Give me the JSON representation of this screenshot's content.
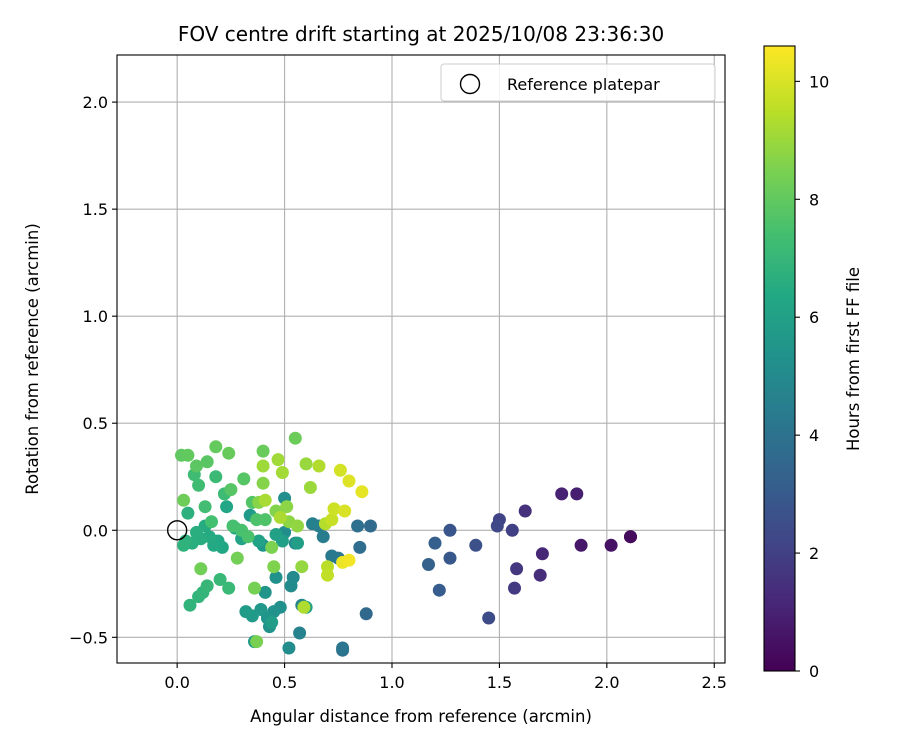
{
  "chart_data": {
    "type": "scatter",
    "title": "FOV centre drift starting at 2025/10/08 23:36:30",
    "xlabel": "Angular distance from reference (arcmin)",
    "ylabel": "Rotation from reference (arcmin)",
    "xlim": [
      -0.28,
      2.55
    ],
    "ylim": [
      -0.62,
      2.22
    ],
    "xticks": [
      "0.0",
      "0.5",
      "1.0",
      "1.5",
      "2.0",
      "2.5"
    ],
    "xtick_values": [
      0.0,
      0.5,
      1.0,
      1.5,
      2.0,
      2.5
    ],
    "yticks": [
      "−0.5",
      "0.0",
      "0.5",
      "1.0",
      "1.5",
      "2.0"
    ],
    "ytick_values": [
      -0.5,
      0.0,
      0.5,
      1.0,
      1.5,
      2.0
    ],
    "grid": true,
    "colorbar": {
      "label": "Hours from first FF file",
      "colormap": "viridis",
      "range": [
        0,
        10.6
      ],
      "ticks": [
        "0",
        "2",
        "4",
        "6",
        "8",
        "10"
      ],
      "tick_values": [
        0,
        2,
        4,
        6,
        8,
        10
      ]
    },
    "legend": {
      "entries": [
        "Reference platepar"
      ],
      "position": "upper right"
    },
    "reference_point": {
      "x": 0.0,
      "y": 0.0,
      "label": "Reference platepar"
    },
    "points": [
      {
        "x": 2.11,
        "y": -0.03,
        "h": 0.1
      },
      {
        "x": 2.11,
        "y": -0.03,
        "h": 0.3
      },
      {
        "x": 2.02,
        "y": -0.07,
        "h": 0.5
      },
      {
        "x": 1.88,
        "y": -0.07,
        "h": 0.7
      },
      {
        "x": 1.86,
        "y": 0.17,
        "h": 0.9
      },
      {
        "x": 1.79,
        "y": 0.17,
        "h": 1.0
      },
      {
        "x": 1.7,
        "y": -0.11,
        "h": 1.2
      },
      {
        "x": 1.69,
        "y": -0.21,
        "h": 1.4
      },
      {
        "x": 1.62,
        "y": 0.09,
        "h": 1.5
      },
      {
        "x": 1.58,
        "y": -0.18,
        "h": 1.7
      },
      {
        "x": 1.57,
        "y": -0.27,
        "h": 1.8
      },
      {
        "x": 1.56,
        "y": 0.0,
        "h": 2.0
      },
      {
        "x": 1.5,
        "y": 0.05,
        "h": 2.1
      },
      {
        "x": 1.49,
        "y": 0.02,
        "h": 2.3
      },
      {
        "x": 1.45,
        "y": -0.41,
        "h": 2.4
      },
      {
        "x": 1.39,
        "y": -0.07,
        "h": 2.6
      },
      {
        "x": 1.27,
        "y": 0.0,
        "h": 2.8
      },
      {
        "x": 1.27,
        "y": -0.13,
        "h": 2.9
      },
      {
        "x": 1.22,
        "y": -0.28,
        "h": 3.1
      },
      {
        "x": 1.2,
        "y": -0.06,
        "h": 3.2
      },
      {
        "x": 1.17,
        "y": -0.16,
        "h": 3.3
      },
      {
        "x": 0.88,
        "y": -0.39,
        "h": 3.6
      },
      {
        "x": 0.9,
        "y": 0.02,
        "h": 3.7
      },
      {
        "x": 0.85,
        "y": -0.08,
        "h": 3.8
      },
      {
        "x": 0.84,
        "y": 0.02,
        "h": 3.9
      },
      {
        "x": 0.77,
        "y": -0.56,
        "h": 4.0
      },
      {
        "x": 0.77,
        "y": -0.55,
        "h": 4.1
      },
      {
        "x": 0.75,
        "y": -0.13,
        "h": 4.2
      },
      {
        "x": 0.72,
        "y": -0.12,
        "h": 4.3
      },
      {
        "x": 0.68,
        "y": -0.03,
        "h": 4.4
      },
      {
        "x": 0.66,
        "y": 0.02,
        "h": 4.5
      },
      {
        "x": 0.63,
        "y": 0.03,
        "h": 4.6
      },
      {
        "x": 0.57,
        "y": -0.48,
        "h": 4.7
      },
      {
        "x": 0.58,
        "y": -0.35,
        "h": 4.8
      },
      {
        "x": 0.55,
        "y": -0.06,
        "h": 4.9
      },
      {
        "x": 0.54,
        "y": -0.22,
        "h": 5.0
      },
      {
        "x": 0.53,
        "y": -0.26,
        "h": 5.05
      },
      {
        "x": 0.52,
        "y": -0.55,
        "h": 5.1
      },
      {
        "x": 0.5,
        "y": -0.01,
        "h": 5.15
      },
      {
        "x": 0.5,
        "y": 0.15,
        "h": 5.2
      },
      {
        "x": 0.48,
        "y": -0.36,
        "h": 5.25
      },
      {
        "x": 0.46,
        "y": -0.22,
        "h": 5.3
      },
      {
        "x": 0.45,
        "y": -0.38,
        "h": 5.35
      },
      {
        "x": 0.43,
        "y": -0.45,
        "h": 5.4
      },
      {
        "x": 0.42,
        "y": -0.41,
        "h": 5.45
      },
      {
        "x": 0.41,
        "y": -0.29,
        "h": 5.5
      },
      {
        "x": 0.4,
        "y": -0.07,
        "h": 5.55
      },
      {
        "x": 0.39,
        "y": -0.37,
        "h": 5.6
      },
      {
        "x": 0.36,
        "y": -0.52,
        "h": 5.65
      },
      {
        "x": 0.35,
        "y": -0.4,
        "h": 5.7
      },
      {
        "x": 0.34,
        "y": 0.07,
        "h": 5.75
      },
      {
        "x": 0.32,
        "y": -0.38,
        "h": 5.8
      },
      {
        "x": 0.44,
        "y": -0.43,
        "h": 5.85
      },
      {
        "x": 0.56,
        "y": -0.06,
        "h": 5.9
      },
      {
        "x": 0.6,
        "y": -0.36,
        "h": 5.95
      },
      {
        "x": 0.49,
        "y": -0.05,
        "h": 6.0
      },
      {
        "x": 0.46,
        "y": -0.02,
        "h": 6.05
      },
      {
        "x": 0.38,
        "y": -0.05,
        "h": 6.1
      },
      {
        "x": 0.3,
        "y": -0.04,
        "h": 6.15
      },
      {
        "x": 0.27,
        "y": 0.01,
        "h": 6.2
      },
      {
        "x": 0.23,
        "y": 0.11,
        "h": 6.25
      },
      {
        "x": 0.21,
        "y": -0.08,
        "h": 6.3
      },
      {
        "x": 0.19,
        "y": -0.05,
        "h": 6.35
      },
      {
        "x": 0.17,
        "y": -0.07,
        "h": 6.4
      },
      {
        "x": 0.15,
        "y": -0.03,
        "h": 6.45
      },
      {
        "x": 0.13,
        "y": 0.02,
        "h": 6.5
      },
      {
        "x": 0.11,
        "y": -0.04,
        "h": 6.55
      },
      {
        "x": 0.09,
        "y": -0.01,
        "h": 6.6
      },
      {
        "x": 0.07,
        "y": -0.06,
        "h": 6.65
      },
      {
        "x": 0.05,
        "y": 0.08,
        "h": 6.7
      },
      {
        "x": 0.04,
        "y": -0.05,
        "h": 6.75
      },
      {
        "x": 0.03,
        "y": -0.07,
        "h": 6.8
      },
      {
        "x": 0.06,
        "y": -0.35,
        "h": 6.85
      },
      {
        "x": 0.1,
        "y": -0.31,
        "h": 6.9
      },
      {
        "x": 0.12,
        "y": -0.29,
        "h": 6.95
      },
      {
        "x": 0.14,
        "y": -0.26,
        "h": 7.0
      },
      {
        "x": 0.2,
        "y": -0.23,
        "h": 7.05
      },
      {
        "x": 0.24,
        "y": -0.27,
        "h": 7.1
      },
      {
        "x": 0.18,
        "y": 0.25,
        "h": 7.15
      },
      {
        "x": 0.22,
        "y": 0.17,
        "h": 7.2
      },
      {
        "x": 0.08,
        "y": 0.26,
        "h": 7.25
      },
      {
        "x": 0.1,
        "y": 0.21,
        "h": 7.3
      },
      {
        "x": 0.13,
        "y": 0.11,
        "h": 7.35
      },
      {
        "x": 0.16,
        "y": 0.04,
        "h": 7.4
      },
      {
        "x": 0.26,
        "y": 0.02,
        "h": 7.45
      },
      {
        "x": 0.3,
        "y": 0.0,
        "h": 7.5
      },
      {
        "x": 0.33,
        "y": -0.03,
        "h": 7.55
      },
      {
        "x": 0.37,
        "y": 0.05,
        "h": 7.6
      },
      {
        "x": 0.41,
        "y": 0.05,
        "h": 7.65
      },
      {
        "x": 0.35,
        "y": 0.13,
        "h": 7.7
      },
      {
        "x": 0.31,
        "y": 0.24,
        "h": 7.75
      },
      {
        "x": 0.25,
        "y": 0.19,
        "h": 7.8
      },
      {
        "x": 0.14,
        "y": 0.32,
        "h": 7.85
      },
      {
        "x": 0.09,
        "y": 0.3,
        "h": 7.9
      },
      {
        "x": 0.02,
        "y": 0.35,
        "h": 7.95
      },
      {
        "x": 0.05,
        "y": 0.35,
        "h": 8.0
      },
      {
        "x": 0.18,
        "y": 0.39,
        "h": 8.05
      },
      {
        "x": 0.24,
        "y": 0.36,
        "h": 8.1
      },
      {
        "x": 0.4,
        "y": 0.37,
        "h": 8.15
      },
      {
        "x": 0.55,
        "y": 0.43,
        "h": 8.2
      },
      {
        "x": 0.03,
        "y": 0.14,
        "h": 8.25
      },
      {
        "x": 0.11,
        "y": -0.18,
        "h": 8.3
      },
      {
        "x": 0.28,
        "y": -0.13,
        "h": 8.35
      },
      {
        "x": 0.36,
        "y": -0.27,
        "h": 8.4
      },
      {
        "x": 0.37,
        "y": -0.52,
        "h": 8.45
      },
      {
        "x": 0.44,
        "y": -0.08,
        "h": 8.5
      },
      {
        "x": 0.45,
        "y": -0.17,
        "h": 8.55
      },
      {
        "x": 0.46,
        "y": 0.09,
        "h": 8.6
      },
      {
        "x": 0.4,
        "y": 0.22,
        "h": 8.65
      },
      {
        "x": 0.38,
        "y": 0.13,
        "h": 8.7
      },
      {
        "x": 0.51,
        "y": 0.11,
        "h": 8.75
      },
      {
        "x": 0.52,
        "y": 0.04,
        "h": 8.8
      },
      {
        "x": 0.56,
        "y": 0.02,
        "h": 8.85
      },
      {
        "x": 0.58,
        "y": -0.17,
        "h": 8.9
      },
      {
        "x": 0.6,
        "y": 0.31,
        "h": 8.95
      },
      {
        "x": 0.62,
        "y": 0.2,
        "h": 9.0
      },
      {
        "x": 0.4,
        "y": 0.3,
        "h": 9.05
      },
      {
        "x": 0.47,
        "y": 0.33,
        "h": 9.1
      },
      {
        "x": 0.49,
        "y": 0.27,
        "h": 9.15
      },
      {
        "x": 0.41,
        "y": 0.14,
        "h": 9.2
      },
      {
        "x": 0.48,
        "y": 0.06,
        "h": 9.25
      },
      {
        "x": 0.59,
        "y": -0.36,
        "h": 9.3
      },
      {
        "x": 0.66,
        "y": 0.3,
        "h": 9.35
      },
      {
        "x": 0.69,
        "y": 0.03,
        "h": 9.4
      },
      {
        "x": 0.7,
        "y": -0.17,
        "h": 9.5
      },
      {
        "x": 0.7,
        "y": -0.21,
        "h": 9.6
      },
      {
        "x": 0.72,
        "y": 0.05,
        "h": 9.7
      },
      {
        "x": 0.73,
        "y": 0.1,
        "h": 9.8
      },
      {
        "x": 0.76,
        "y": 0.28,
        "h": 9.9
      },
      {
        "x": 0.78,
        "y": 0.09,
        "h": 10.0
      },
      {
        "x": 0.8,
        "y": 0.23,
        "h": 10.1
      },
      {
        "x": 0.86,
        "y": 0.18,
        "h": 10.2
      },
      {
        "x": 0.77,
        "y": -0.15,
        "h": 10.3
      },
      {
        "x": 0.8,
        "y": -0.14,
        "h": 10.4
      }
    ]
  },
  "colors": {
    "grid": "#b0b0b0",
    "axes": "#000000",
    "legend_border": "#cccccc"
  }
}
